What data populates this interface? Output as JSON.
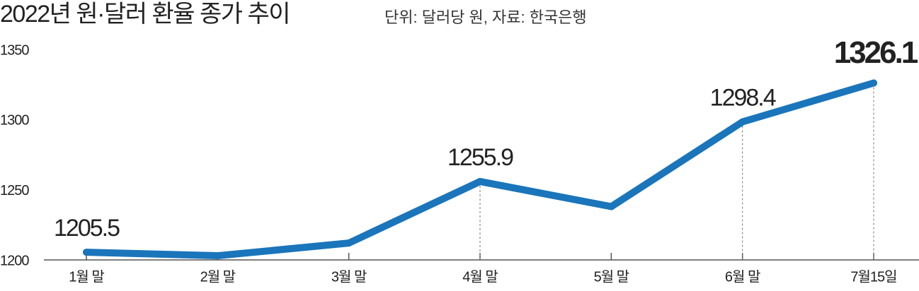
{
  "chart_data": {
    "type": "line",
    "title": "2022년 원·달러 환율 종가 추이",
    "subtitle": "단위: 달러당 원, 자료: 한국은행",
    "categories": [
      "1월 말",
      "2월 말",
      "3월 말",
      "4월 말",
      "5월 말",
      "6월 말",
      "7월15일"
    ],
    "values": [
      1205.5,
      1203,
      1212,
      1255.9,
      1238,
      1298.4,
      1326.1
    ],
    "value_labels": [
      "1205.5",
      null,
      null,
      "1255.9",
      null,
      "1298.4",
      "1326.1"
    ],
    "color": "#1a75bb",
    "ylim": [
      1200,
      1350
    ],
    "yticks": [
      1200,
      1250,
      1300,
      1350
    ],
    "grid": false
  }
}
